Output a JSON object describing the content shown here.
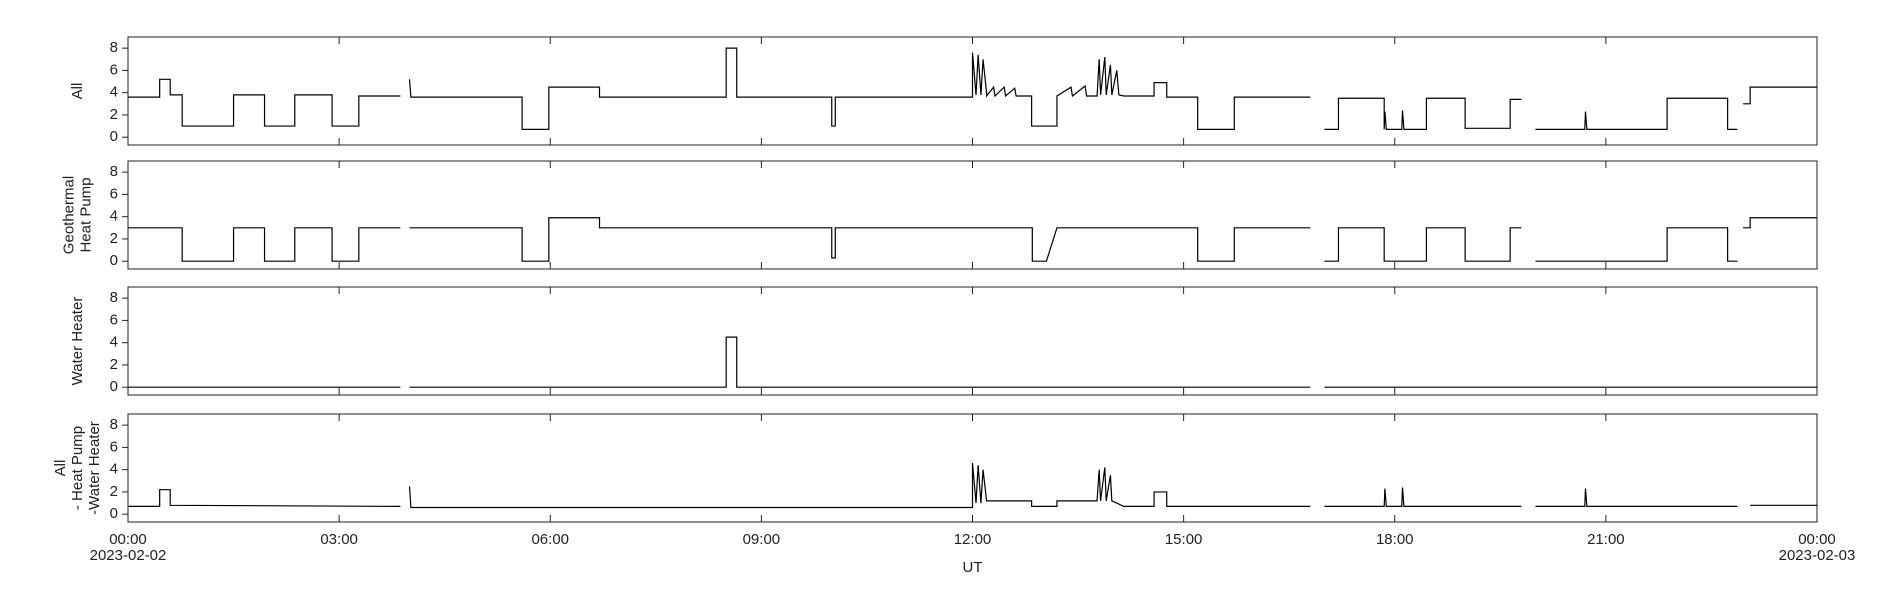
{
  "chart_data": [
    {
      "type": "line",
      "ylabel": [
        "All"
      ],
      "xlim": [
        0,
        24
      ],
      "xticks": [
        0,
        3,
        6,
        9,
        12,
        15,
        18,
        21,
        24
      ],
      "ylim": [
        -0.7,
        9
      ],
      "yticks": [
        0,
        2,
        4,
        6,
        8
      ],
      "series": [
        {
          "color": "#000000",
          "x": [
            0,
            0.45,
            0.45,
            0.6,
            0.6,
            0.77,
            0.77,
            1.5,
            1.5,
            1.94,
            1.94,
            2.37,
            2.37,
            2.9,
            2.9,
            3.28,
            3.28,
            3.87,
            3.93,
            4.0,
            4.02,
            5.6,
            5.6,
            5.98,
            5.98,
            6.7,
            6.7,
            8.5,
            8.5,
            8.65,
            8.65,
            10.0,
            10.0,
            10.05,
            10.05,
            12.0,
            12.0,
            12.05,
            12.08,
            12.12,
            12.15,
            12.2,
            12.2,
            12.3,
            12.32,
            12.45,
            12.47,
            12.6,
            12.62,
            12.84,
            12.84,
            13.2,
            13.2,
            13.4,
            13.42,
            13.6,
            13.62,
            13.77,
            13.8,
            13.82,
            13.88,
            13.9,
            13.96,
            13.98,
            14.05,
            14.08,
            14.15,
            14.58,
            14.58,
            14.76,
            14.76,
            15.2,
            15.2,
            15.72,
            15.72,
            16.8,
            16.9,
            17.0,
            17.2,
            17.2,
            17.85,
            17.85,
            17.86,
            17.88,
            18.1,
            18.11,
            18.13,
            18.45,
            18.45,
            19.0,
            19.0,
            19.64,
            19.64,
            19.8,
            19.9,
            20.0,
            20.7,
            20.71,
            20.73,
            21.87,
            21.87,
            22.73,
            22.73,
            22.87,
            22.9,
            22.95,
            23.05,
            23.05,
            24
          ],
          "values": [
            3.6,
            3.6,
            5.2,
            5.2,
            3.8,
            3.8,
            1.0,
            1.0,
            3.8,
            3.8,
            1.0,
            1.0,
            3.8,
            3.8,
            1.0,
            1.0,
            3.7,
            3.7,
            null,
            5.2,
            3.6,
            3.6,
            0.7,
            0.7,
            4.5,
            4.5,
            3.6,
            3.6,
            8.0,
            8.0,
            3.6,
            3.6,
            1.0,
            1.0,
            3.6,
            3.6,
            7.6,
            3.8,
            7.4,
            3.8,
            7.0,
            4.0,
            3.7,
            4.5,
            3.7,
            4.5,
            3.7,
            4.4,
            3.7,
            3.7,
            1.0,
            1.0,
            3.7,
            4.5,
            3.7,
            4.6,
            3.7,
            3.7,
            7.0,
            3.8,
            7.2,
            3.8,
            6.5,
            3.8,
            6.0,
            3.8,
            3.7,
            3.7,
            4.9,
            4.9,
            3.6,
            3.6,
            0.7,
            0.7,
            3.6,
            3.6,
            null,
            0.7,
            0.7,
            3.5,
            3.5,
            0.7,
            2.3,
            0.7,
            0.7,
            2.4,
            0.7,
            0.7,
            3.5,
            3.5,
            0.8,
            0.8,
            3.4,
            3.4,
            null,
            0.7,
            0.7,
            2.3,
            0.7,
            0.7,
            3.5,
            3.5,
            0.7,
            0.7,
            null,
            3.0,
            3.0,
            4.5,
            4.5
          ]
        }
      ]
    },
    {
      "type": "line",
      "ylabel": [
        "Geothermal",
        "Heat Pump"
      ],
      "xlim": [
        0,
        24
      ],
      "xticks": [
        0,
        3,
        6,
        9,
        12,
        15,
        18,
        21,
        24
      ],
      "ylim": [
        -0.7,
        9
      ],
      "yticks": [
        0,
        2,
        4,
        6,
        8
      ],
      "series": [
        {
          "color": "#000000",
          "x": [
            0,
            0.77,
            0.77,
            1.5,
            1.5,
            1.94,
            1.94,
            2.37,
            2.37,
            2.9,
            2.9,
            3.28,
            3.28,
            3.87,
            3.93,
            4.0,
            5.6,
            5.6,
            5.98,
            5.98,
            6.7,
            6.7,
            10.0,
            10.0,
            10.05,
            10.05,
            12.85,
            12.85,
            13.05,
            13.2,
            15.2,
            15.2,
            15.72,
            15.72,
            16.8,
            16.9,
            17.0,
            17.2,
            17.2,
            17.85,
            17.85,
            18.45,
            18.45,
            19.0,
            19.0,
            19.64,
            19.64,
            19.8,
            19.9,
            20.0,
            21.87,
            21.87,
            22.73,
            22.73,
            22.87,
            22.9,
            22.95,
            23.05,
            23.05,
            24
          ],
          "values": [
            3.0,
            3.0,
            0,
            0,
            3.0,
            3.0,
            0,
            0,
            3.0,
            3.0,
            0,
            0,
            3.0,
            3.0,
            null,
            3.0,
            3.0,
            0,
            0,
            3.9,
            3.9,
            3.0,
            3.0,
            0.3,
            0.3,
            3.0,
            3.0,
            0,
            0,
            3.0,
            3.0,
            0,
            0,
            3.0,
            3.0,
            null,
            0,
            0,
            3.0,
            3.0,
            0,
            0,
            3.0,
            3.0,
            0,
            0,
            3.0,
            3.0,
            null,
            0,
            0,
            3.0,
            3.0,
            0,
            0,
            null,
            3.0,
            3.0,
            3.9,
            3.9
          ]
        }
      ]
    },
    {
      "type": "line",
      "ylabel": [
        "Water Heater"
      ],
      "xlim": [
        0,
        24
      ],
      "xticks": [
        0,
        3,
        6,
        9,
        12,
        15,
        18,
        21,
        24
      ],
      "ylim": [
        -0.7,
        9
      ],
      "yticks": [
        0,
        2,
        4,
        6,
        8
      ],
      "series": [
        {
          "color": "#000000",
          "x": [
            0,
            3.87,
            3.93,
            4.0,
            8.5,
            8.5,
            8.65,
            8.65,
            16.8,
            16.9,
            17.0,
            24
          ],
          "values": [
            0,
            0,
            null,
            0,
            0,
            4.5,
            4.5,
            0,
            0,
            null,
            0,
            0
          ]
        }
      ]
    },
    {
      "type": "line",
      "ylabel": [
        "All",
        "- Heat Pump",
        "-Water Heater"
      ],
      "xlabel": "UT",
      "xlim": [
        0,
        24
      ],
      "xticks": [
        {
          "value": 0,
          "label": "00:00"
        },
        {
          "value": 3,
          "label": "03:00"
        },
        {
          "value": 6,
          "label": "06:00"
        },
        {
          "value": 9,
          "label": "09:00"
        },
        {
          "value": 12,
          "label": "12:00"
        },
        {
          "value": 15,
          "label": "15:00"
        },
        {
          "value": 18,
          "label": "18:00"
        },
        {
          "value": 21,
          "label": "21:00"
        },
        {
          "value": 24,
          "label": "00:00"
        }
      ],
      "xtick_dates": [
        {
          "value": 0,
          "label": "2023-02-02"
        },
        {
          "value": 24,
          "label": "2023-02-03"
        }
      ],
      "ylim": [
        -0.7,
        9
      ],
      "yticks": [
        0,
        2,
        4,
        6,
        8
      ],
      "series": [
        {
          "color": "#000000",
          "x": [
            0,
            0.45,
            0.45,
            0.6,
            0.6,
            3.87,
            3.93,
            4.0,
            4.02,
            12.0,
            12.0,
            12.05,
            12.08,
            12.12,
            12.15,
            12.2,
            12.84,
            12.84,
            13.2,
            13.2,
            13.77,
            13.8,
            13.82,
            13.88,
            13.9,
            13.96,
            13.98,
            14.15,
            14.58,
            14.58,
            14.76,
            14.76,
            16.8,
            16.9,
            17.0,
            17.85,
            17.86,
            17.88,
            18.1,
            18.11,
            18.13,
            19.8,
            19.9,
            20.0,
            20.7,
            20.71,
            20.73,
            22.87,
            22.9,
            23.05,
            24
          ],
          "values": [
            0.7,
            0.7,
            2.2,
            2.2,
            0.8,
            0.7,
            null,
            2.5,
            0.6,
            0.6,
            4.6,
            1.0,
            4.4,
            1.0,
            4.0,
            1.2,
            1.2,
            0.7,
            0.7,
            1.2,
            1.2,
            4.0,
            1.2,
            4.2,
            1.2,
            3.5,
            1.2,
            0.7,
            0.7,
            2.0,
            2.0,
            0.7,
            0.7,
            null,
            0.7,
            0.7,
            2.3,
            0.7,
            0.7,
            2.4,
            0.7,
            0.7,
            null,
            0.7,
            0.7,
            2.3,
            0.7,
            0.7,
            null,
            0.8,
            0.8
          ]
        }
      ]
    }
  ]
}
